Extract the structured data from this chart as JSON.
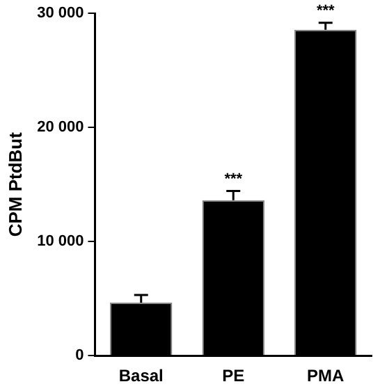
{
  "chart_data": {
    "type": "bar",
    "ylabel": "CPM PtdBut",
    "categories": [
      "Basal",
      "PE",
      "PMA"
    ],
    "values": [
      4650,
      13630,
      28570
    ],
    "errors": [
      670,
      800,
      600
    ],
    "color": "#000000",
    "ylim": [
      0,
      30000
    ],
    "yticks": [
      {
        "value": 0,
        "label": "0"
      },
      {
        "value": 10000,
        "label": "10 000"
      },
      {
        "value": 20000,
        "label": "20 000"
      },
      {
        "value": 30000,
        "label": "30 000"
      }
    ],
    "annotations": [
      {
        "text": "***",
        "x": "PE",
        "y": 14430
      },
      {
        "text": "***",
        "x": "PMA",
        "y": 29170
      }
    ],
    "grid": false,
    "legend": false
  }
}
